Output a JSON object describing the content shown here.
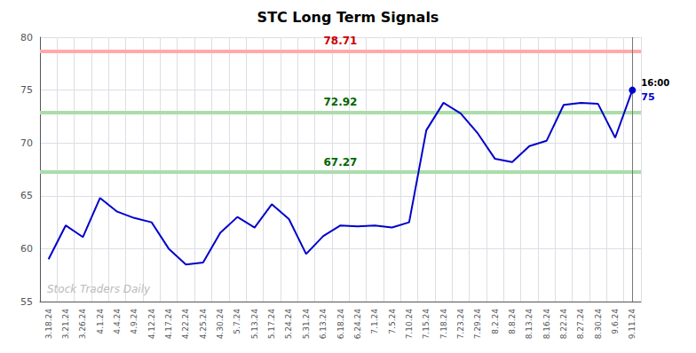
{
  "chart_data": {
    "type": "line",
    "title": "STC Long Term Signals",
    "categories": [
      "3.18.24",
      "3.21.24",
      "3.26.24",
      "4.1.24",
      "4.4.24",
      "4.9.24",
      "4.12.24",
      "4.17.24",
      "4.22.24",
      "4.25.24",
      "4.30.24",
      "5.7.24",
      "5.13.24",
      "5.17.24",
      "5.24.24",
      "5.31.24",
      "6.13.24",
      "6.18.24",
      "6.24.24",
      "7.1.24",
      "7.5.24",
      "7.10.24",
      "7.15.24",
      "7.18.24",
      "7.23.24",
      "7.29.24",
      "8.2.24",
      "8.8.24",
      "8.13.24",
      "8.16.24",
      "8.22.24",
      "8.27.24",
      "8.30.24",
      "9.6.24",
      "9.11.24"
    ],
    "values": [
      59.0,
      62.2,
      61.1,
      64.8,
      63.5,
      62.9,
      62.5,
      60.0,
      58.5,
      58.7,
      61.5,
      63.0,
      62.0,
      64.2,
      62.8,
      59.5,
      61.2,
      62.2,
      62.1,
      62.2,
      62.0,
      62.5,
      71.2,
      73.8,
      72.8,
      70.9,
      68.5,
      68.2,
      69.7,
      70.2,
      73.6,
      73.8,
      73.7,
      70.5,
      75.0
    ],
    "color": "#0000cc",
    "ylim": [
      55,
      80
    ],
    "yticks": [
      55,
      60,
      65,
      70,
      75,
      80
    ],
    "grid": true,
    "hlines": [
      {
        "value": 78.71,
        "color": "#ffaaaa",
        "label_color": "#cc0000"
      },
      {
        "value": 72.92,
        "color": "#aaddaa",
        "label_color": "#006600"
      },
      {
        "value": 67.27,
        "color": "#aaddaa",
        "label_color": "#006600"
      }
    ],
    "last_point": {
      "label": "16:00",
      "label_color": "#000000",
      "color": "#0000cc"
    },
    "annotations": [
      {
        "text": "Stock Traders Daily",
        "color": "#bbbbbb"
      }
    ]
  }
}
